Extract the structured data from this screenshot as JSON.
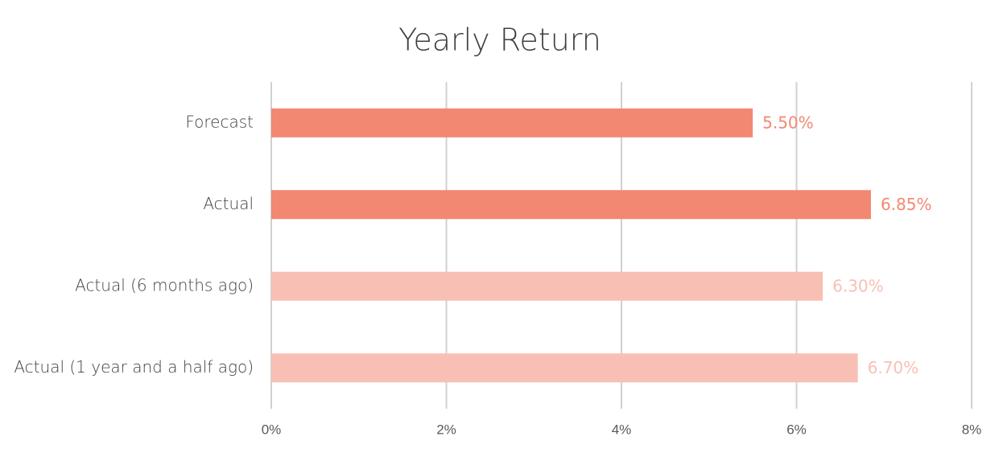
{
  "chart_data": {
    "type": "hbar",
    "title": "Yearly Return",
    "categories": [
      "Forecast",
      "Actual",
      "Actual (6 months ago)",
      "Actual (1 year and a half ago)"
    ],
    "values": [
      5.5,
      6.85,
      6.3,
      6.7
    ],
    "value_labels": [
      "5.50%",
      "6.85%",
      "6.30%",
      "6.70%"
    ],
    "colors": [
      "#f28872",
      "#f28872",
      "#f8c0b4",
      "#f8c0b4"
    ],
    "xlim": [
      0,
      8
    ],
    "xticks": [
      {
        "value": 0,
        "label": "0%"
      },
      {
        "value": 2,
        "label": "2%"
      },
      {
        "value": 4,
        "label": "4%"
      },
      {
        "value": 6,
        "label": "6%"
      },
      {
        "value": 8,
        "label": "8%"
      }
    ],
    "grid": true
  }
}
